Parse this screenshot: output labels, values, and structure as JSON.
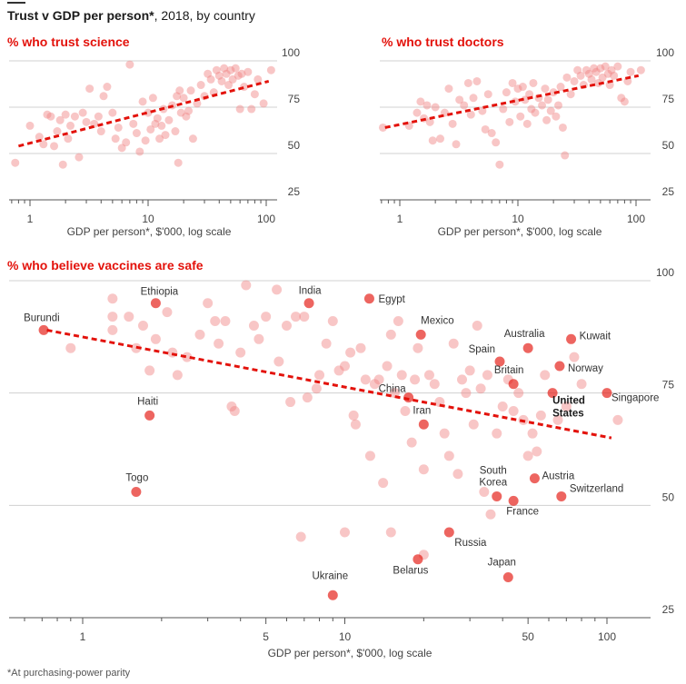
{
  "header": {
    "title_bold": "Trust v GDP per person*",
    "title_rest": ", 2018, by country"
  },
  "footnote": "*At purchasing-power parity",
  "colors": {
    "accent": "#e3120b",
    "point": "#f08080",
    "trend": "#e3120b",
    "grid": "#d0d0d0"
  },
  "chart_data": [
    {
      "type": "scatter",
      "title": "% who trust science",
      "xlabel": "GDP per person*, $'000, log scale",
      "ylabel": "",
      "xscale": "log",
      "xlim": [
        0.55,
        140
      ],
      "ylim": [
        20,
        100
      ],
      "xticks": [
        1,
        10,
        100
      ],
      "yticks": [
        25,
        50,
        75,
        100
      ],
      "y_axis_side": "right",
      "grid": "horizontal",
      "trend_line": [
        [
          0.8,
          54
        ],
        [
          105,
          89
        ]
      ],
      "points": [
        [
          0.75,
          45
        ],
        [
          1.0,
          65
        ],
        [
          1.2,
          59
        ],
        [
          1.3,
          55
        ],
        [
          1.4,
          71
        ],
        [
          1.5,
          70
        ],
        [
          1.6,
          54
        ],
        [
          1.7,
          62
        ],
        [
          1.8,
          68
        ],
        [
          1.9,
          44
        ],
        [
          2.0,
          71
        ],
        [
          2.1,
          58
        ],
        [
          2.2,
          65
        ],
        [
          2.4,
          70
        ],
        [
          2.6,
          48
        ],
        [
          2.8,
          72
        ],
        [
          3.0,
          67
        ],
        [
          3.2,
          85
        ],
        [
          3.5,
          66
        ],
        [
          3.8,
          70
        ],
        [
          4.0,
          62
        ],
        [
          4.2,
          81
        ],
        [
          4.5,
          86
        ],
        [
          5.0,
          72
        ],
        [
          5.3,
          58
        ],
        [
          5.6,
          64
        ],
        [
          6.0,
          53
        ],
        [
          6.5,
          56
        ],
        [
          7.0,
          98
        ],
        [
          7.5,
          66
        ],
        [
          8.0,
          61
        ],
        [
          8.5,
          51
        ],
        [
          9.0,
          78
        ],
        [
          9.5,
          57
        ],
        [
          10.0,
          72
        ],
        [
          10.5,
          63
        ],
        [
          11.0,
          80
        ],
        [
          11.5,
          66
        ],
        [
          12.0,
          69
        ],
        [
          12.5,
          58
        ],
        [
          13.0,
          65
        ],
        [
          13.5,
          74
        ],
        [
          14.0,
          60
        ],
        [
          15.0,
          68
        ],
        [
          16.0,
          76
        ],
        [
          17.0,
          62
        ],
        [
          17.5,
          81
        ],
        [
          18.0,
          45
        ],
        [
          18.5,
          84
        ],
        [
          19.0,
          72
        ],
        [
          20.0,
          80
        ],
        [
          21.0,
          70
        ],
        [
          22.0,
          73
        ],
        [
          23.0,
          84
        ],
        [
          24.0,
          58
        ],
        [
          26.0,
          77
        ],
        [
          28.0,
          87
        ],
        [
          30.0,
          81
        ],
        [
          32.0,
          93
        ],
        [
          34.0,
          90
        ],
        [
          36.0,
          83
        ],
        [
          38.0,
          95
        ],
        [
          40.0,
          92
        ],
        [
          42.0,
          89
        ],
        [
          44.0,
          96
        ],
        [
          46.0,
          93
        ],
        [
          48.0,
          87
        ],
        [
          50.0,
          95
        ],
        [
          52.0,
          90
        ],
        [
          55.0,
          96
        ],
        [
          58.0,
          92
        ],
        [
          60.0,
          74
        ],
        [
          62.0,
          93
        ],
        [
          65.0,
          86
        ],
        [
          70.0,
          94
        ],
        [
          75.0,
          74
        ],
        [
          80.0,
          82
        ],
        [
          85.0,
          90
        ],
        [
          95.0,
          77
        ],
        [
          110.0,
          95
        ]
      ]
    },
    {
      "type": "scatter",
      "title": "% who trust doctors",
      "xlabel": "GDP per person*, $'000, log scale",
      "ylabel": "",
      "xscale": "log",
      "xlim": [
        0.55,
        140
      ],
      "ylim": [
        20,
        100
      ],
      "xticks": [
        1,
        10,
        100
      ],
      "yticks": [
        25,
        50,
        75,
        100
      ],
      "y_axis_side": "right",
      "grid": "horizontal",
      "trend_line": [
        [
          0.75,
          64
        ],
        [
          105,
          92
        ]
      ],
      "points": [
        [
          0.72,
          64
        ],
        [
          1.2,
          65
        ],
        [
          1.4,
          72
        ],
        [
          1.5,
          78
        ],
        [
          1.6,
          69
        ],
        [
          1.7,
          76
        ],
        [
          1.8,
          67
        ],
        [
          1.9,
          57
        ],
        [
          2.0,
          75
        ],
        [
          2.2,
          58
        ],
        [
          2.4,
          72
        ],
        [
          2.6,
          85
        ],
        [
          2.8,
          66
        ],
        [
          3.0,
          55
        ],
        [
          3.2,
          79
        ],
        [
          3.5,
          76
        ],
        [
          3.8,
          88
        ],
        [
          4.0,
          71
        ],
        [
          4.2,
          80
        ],
        [
          4.5,
          89
        ],
        [
          5.0,
          73
        ],
        [
          5.3,
          63
        ],
        [
          5.6,
          82
        ],
        [
          6.0,
          61
        ],
        [
          6.5,
          56
        ],
        [
          7.0,
          44
        ],
        [
          7.5,
          74
        ],
        [
          8.0,
          83
        ],
        [
          8.5,
          67
        ],
        [
          9.0,
          88
        ],
        [
          9.5,
          78
        ],
        [
          10.0,
          85
        ],
        [
          10.5,
          70
        ],
        [
          11.0,
          86
        ],
        [
          11.5,
          79
        ],
        [
          12.0,
          66
        ],
        [
          12.5,
          82
        ],
        [
          13.0,
          74
        ],
        [
          13.5,
          88
        ],
        [
          14.0,
          72
        ],
        [
          15.0,
          80
        ],
        [
          16.0,
          76
        ],
        [
          17.0,
          85
        ],
        [
          17.5,
          68
        ],
        [
          18.0,
          79
        ],
        [
          19.0,
          73
        ],
        [
          20.0,
          83
        ],
        [
          21.0,
          70
        ],
        [
          22.0,
          76
        ],
        [
          23.0,
          86
        ],
        [
          24.0,
          64
        ],
        [
          25.0,
          49
        ],
        [
          26.0,
          91
        ],
        [
          28.0,
          82
        ],
        [
          30.0,
          89
        ],
        [
          32.0,
          95
        ],
        [
          34.0,
          92
        ],
        [
          36.0,
          87
        ],
        [
          38.0,
          95
        ],
        [
          40.0,
          93
        ],
        [
          42.0,
          90
        ],
        [
          44.0,
          96
        ],
        [
          46.0,
          94
        ],
        [
          48.0,
          88
        ],
        [
          50.0,
          96
        ],
        [
          52.0,
          91
        ],
        [
          55.0,
          97
        ],
        [
          58.0,
          93
        ],
        [
          60.0,
          87
        ],
        [
          62.0,
          95
        ],
        [
          65.0,
          92
        ],
        [
          70.0,
          97
        ],
        [
          75.0,
          80
        ],
        [
          80.0,
          78
        ],
        [
          85.0,
          89
        ],
        [
          90.0,
          94
        ],
        [
          110.0,
          95
        ]
      ]
    },
    {
      "type": "scatter",
      "title": "% who believe vaccines are safe",
      "xlabel": "GDP per person*, $'000, log scale",
      "ylabel": "",
      "xscale": "log",
      "xlim": [
        0.43,
        140
      ],
      "ylim": [
        20,
        102
      ],
      "xticks": [
        1,
        5,
        10,
        50,
        100
      ],
      "yticks": [
        25,
        50,
        75,
        100
      ],
      "y_axis_side": "right",
      "grid": "horizontal",
      "trend_line": [
        [
          0.73,
          89
        ],
        [
          104,
          65
        ]
      ],
      "labelled_points": [
        {
          "name": "Burundi",
          "x": 0.71,
          "y": 89
        },
        {
          "name": "Ethiopia",
          "x": 1.9,
          "y": 95
        },
        {
          "name": "India",
          "x": 7.3,
          "y": 95
        },
        {
          "name": "Egypt",
          "x": 12.4,
          "y": 96
        },
        {
          "name": "Mexico",
          "x": 19.5,
          "y": 88
        },
        {
          "name": "Australia",
          "x": 50,
          "y": 85
        },
        {
          "name": "Kuwait",
          "x": 73,
          "y": 87
        },
        {
          "name": "Spain",
          "x": 39,
          "y": 82
        },
        {
          "name": "Norway",
          "x": 66,
          "y": 81
        },
        {
          "name": "Britain",
          "x": 44,
          "y": 77
        },
        {
          "name": "United States",
          "x": 62,
          "y": 75
        },
        {
          "name": "Singapore",
          "x": 100,
          "y": 75
        },
        {
          "name": "China",
          "x": 17.5,
          "y": 74
        },
        {
          "name": "Haiti",
          "x": 1.8,
          "y": 70
        },
        {
          "name": "Iran",
          "x": 20,
          "y": 68
        },
        {
          "name": "Togo",
          "x": 1.6,
          "y": 53
        },
        {
          "name": "South Korea",
          "x": 38,
          "y": 52
        },
        {
          "name": "Austria",
          "x": 53,
          "y": 56
        },
        {
          "name": "France",
          "x": 44,
          "y": 51
        },
        {
          "name": "Switzerland",
          "x": 67,
          "y": 52
        },
        {
          "name": "Russia",
          "x": 25,
          "y": 44
        },
        {
          "name": "Belarus",
          "x": 19,
          "y": 38
        },
        {
          "name": "Japan",
          "x": 42,
          "y": 34
        },
        {
          "name": "Ukraine",
          "x": 9,
          "y": 30
        }
      ],
      "points": [
        [
          0.9,
          85
        ],
        [
          1.3,
          96
        ],
        [
          1.3,
          92
        ],
        [
          1.3,
          89
        ],
        [
          1.5,
          92
        ],
        [
          1.6,
          85
        ],
        [
          1.7,
          90
        ],
        [
          1.8,
          80
        ],
        [
          1.9,
          87
        ],
        [
          2.1,
          93
        ],
        [
          2.2,
          84
        ],
        [
          2.3,
          79
        ],
        [
          2.5,
          83
        ],
        [
          2.8,
          88
        ],
        [
          3.0,
          95
        ],
        [
          3.2,
          91
        ],
        [
          3.3,
          86
        ],
        [
          3.5,
          91
        ],
        [
          3.7,
          72
        ],
        [
          3.8,
          71
        ],
        [
          4.0,
          84
        ],
        [
          4.2,
          99
        ],
        [
          4.5,
          90
        ],
        [
          4.7,
          87
        ],
        [
          5.0,
          92
        ],
        [
          5.5,
          98
        ],
        [
          5.6,
          82
        ],
        [
          6.0,
          90
        ],
        [
          6.2,
          73
        ],
        [
          6.5,
          92
        ],
        [
          7.0,
          92
        ],
        [
          7.2,
          74
        ],
        [
          7.8,
          76
        ],
        [
          8.0,
          79
        ],
        [
          8.5,
          86
        ],
        [
          9.0,
          91
        ],
        [
          9.5,
          80
        ],
        [
          10.0,
          81
        ],
        [
          10.5,
          84
        ],
        [
          10.8,
          70
        ],
        [
          11.0,
          68
        ],
        [
          11.5,
          85
        ],
        [
          12.0,
          78
        ],
        [
          12.5,
          61
        ],
        [
          13.0,
          77
        ],
        [
          13.5,
          78
        ],
        [
          14.0,
          55
        ],
        [
          14.5,
          81
        ],
        [
          15.0,
          88
        ],
        [
          15.5,
          75
        ],
        [
          16.0,
          91
        ],
        [
          16.5,
          79
        ],
        [
          17.0,
          71
        ],
        [
          18.0,
          64
        ],
        [
          18.5,
          78
        ],
        [
          19.0,
          85
        ],
        [
          20.0,
          58
        ],
        [
          21.0,
          79
        ],
        [
          22.0,
          77
        ],
        [
          23.0,
          73
        ],
        [
          24.0,
          66
        ],
        [
          25.0,
          61
        ],
        [
          26.0,
          86
        ],
        [
          27.0,
          57
        ],
        [
          28.0,
          78
        ],
        [
          29.0,
          75
        ],
        [
          30.0,
          80
        ],
        [
          31.0,
          68
        ],
        [
          32.0,
          90
        ],
        [
          33.0,
          76
        ],
        [
          34.0,
          53
        ],
        [
          35.0,
          79
        ],
        [
          36.0,
          48
        ],
        [
          38.0,
          66
        ],
        [
          40.0,
          72
        ],
        [
          42.0,
          78
        ],
        [
          44.0,
          71
        ],
        [
          46.0,
          75
        ],
        [
          48.0,
          69
        ],
        [
          50.0,
          61
        ],
        [
          52.0,
          66
        ],
        [
          54.0,
          62
        ],
        [
          56.0,
          70
        ],
        [
          58.0,
          79
        ],
        [
          65.0,
          69
        ],
        [
          70.0,
          72
        ],
        [
          75.0,
          83
        ],
        [
          80.0,
          77
        ],
        [
          110.0,
          69
        ],
        [
          15.0,
          44
        ],
        [
          10.0,
          44
        ],
        [
          6.8,
          43
        ],
        [
          20.0,
          39
        ]
      ]
    }
  ]
}
